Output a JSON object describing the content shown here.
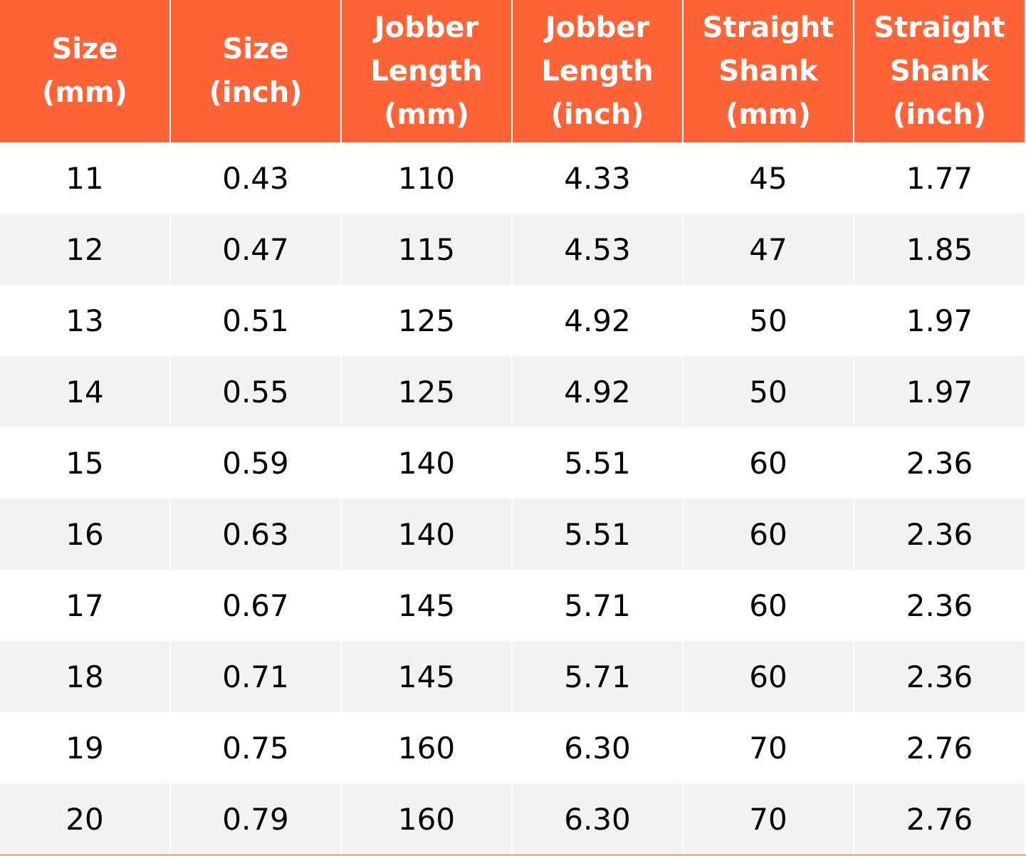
{
  "table": {
    "header": [
      [
        "Size",
        "(mm)"
      ],
      [
        "Size",
        "(inch)"
      ],
      [
        "Jobber",
        "Length",
        "(mm)"
      ],
      [
        "Jobber",
        "Length",
        "(inch)"
      ],
      [
        "Straight",
        "Shank",
        "(mm)"
      ],
      [
        "Straight",
        "Shank",
        "(inch)"
      ]
    ],
    "rows": [
      [
        "11",
        "0.43",
        "110",
        "4.33",
        "45",
        "1.77"
      ],
      [
        "12",
        "0.47",
        "115",
        "4.53",
        "47",
        "1.85"
      ],
      [
        "13",
        "0.51",
        "125",
        "4.92",
        "50",
        "1.97"
      ],
      [
        "14",
        "0.55",
        "125",
        "4.92",
        "50",
        "1.97"
      ],
      [
        "15",
        "0.59",
        "140",
        "5.51",
        "60",
        "2.36"
      ],
      [
        "16",
        "0.63",
        "140",
        "5.51",
        "60",
        "2.36"
      ],
      [
        "17",
        "0.67",
        "145",
        "5.71",
        "60",
        "2.36"
      ],
      [
        "18",
        "0.71",
        "145",
        "5.71",
        "60",
        "2.36"
      ],
      [
        "19",
        "0.75",
        "160",
        "6.30",
        "70",
        "2.76"
      ],
      [
        "20",
        "0.79",
        "160",
        "6.30",
        "70",
        "2.76"
      ]
    ]
  }
}
